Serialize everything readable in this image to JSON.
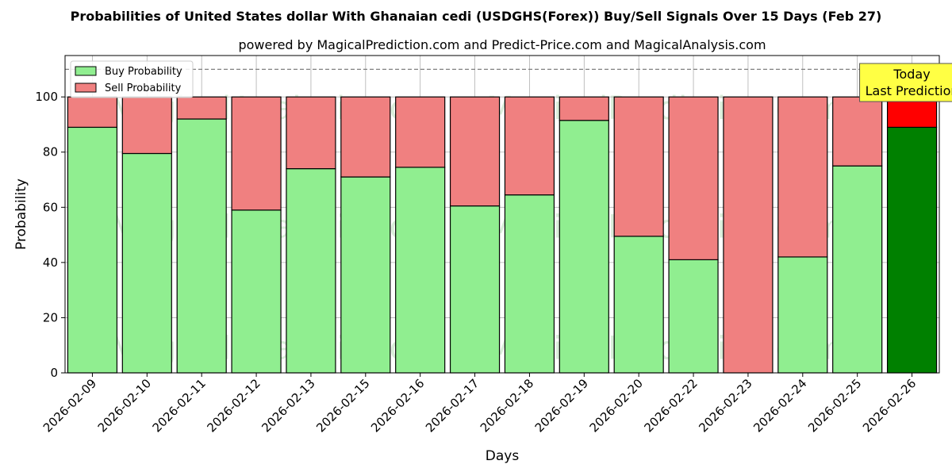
{
  "chart_data": {
    "type": "bar",
    "stacked": true,
    "title": "Probabilities of United States dollar With Ghanaian cedi (USDGHS(Forex)) Buy/Sell Signals Over 15 Days (Feb 27)",
    "subtitle": "powered by MagicalPrediction.com and Predict-Price.com and MagicalAnalysis.com",
    "xlabel": "Days",
    "ylabel": "Probability",
    "ylim": [
      0,
      115
    ],
    "yticks": [
      0,
      20,
      40,
      60,
      80,
      100
    ],
    "reference_line": 110,
    "grid": true,
    "legend_position": "top-left",
    "categories": [
      "2026-02-09",
      "2026-02-10",
      "2026-02-11",
      "2026-02-12",
      "2026-02-13",
      "2026-02-15",
      "2026-02-16",
      "2026-02-17",
      "2026-02-18",
      "2026-02-19",
      "2026-02-20",
      "2026-02-22",
      "2026-02-23",
      "2026-02-24",
      "2026-02-25",
      "2026-02-26"
    ],
    "series": [
      {
        "name": "Buy Probability",
        "color": "#90ee90",
        "values": [
          89,
          79.5,
          92,
          59,
          74,
          71,
          74.5,
          60.5,
          64.5,
          91.5,
          49.5,
          41,
          0,
          42,
          75,
          89
        ]
      },
      {
        "name": "Sell Probability",
        "color": "#f08080",
        "values": [
          11,
          20.5,
          8,
          41,
          26,
          29,
          25.5,
          39.5,
          35.5,
          8.5,
          50.5,
          59,
          100,
          58,
          25,
          11
        ]
      }
    ],
    "highlight": {
      "index": 15,
      "buy_color": "#008000",
      "sell_color": "#ff0000"
    },
    "annotation": {
      "line1": "Today",
      "line2": "Last Prediction",
      "background": "#ffff44"
    },
    "watermarks": [
      "MagicalAnalysis.com",
      "MagicalPrediction.com"
    ]
  }
}
